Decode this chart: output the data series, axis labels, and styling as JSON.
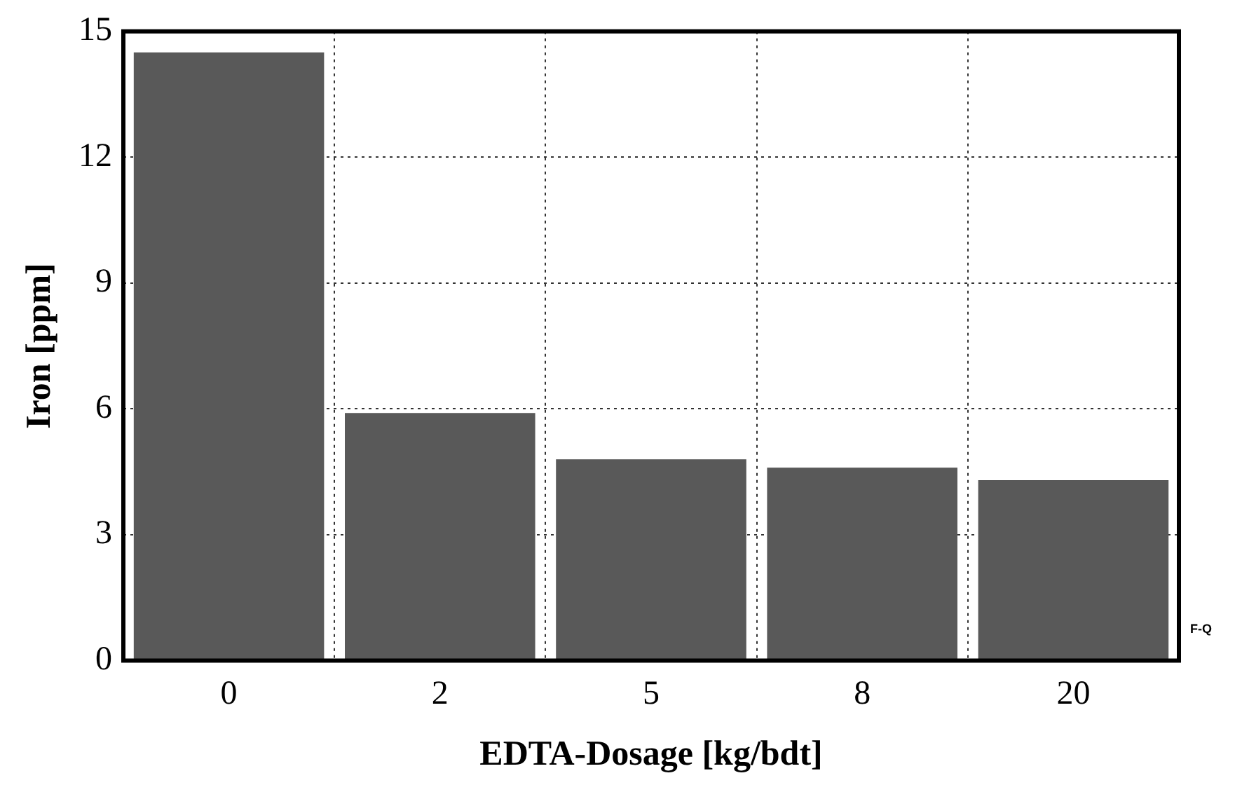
{
  "chart_data": {
    "type": "bar",
    "xlabel": "EDTA-Dosage [kg/bdt]",
    "ylabel": "Iron [ppm]",
    "categories": [
      "0",
      "2",
      "5",
      "8",
      "20"
    ],
    "values": [
      14.5,
      5.9,
      4.8,
      4.6,
      4.3
    ],
    "color": "#595959",
    "ylim": [
      0,
      15
    ],
    "yticks": [
      0,
      3,
      6,
      9,
      12,
      15
    ],
    "grid": true,
    "annotations": [
      "F-Q"
    ]
  }
}
